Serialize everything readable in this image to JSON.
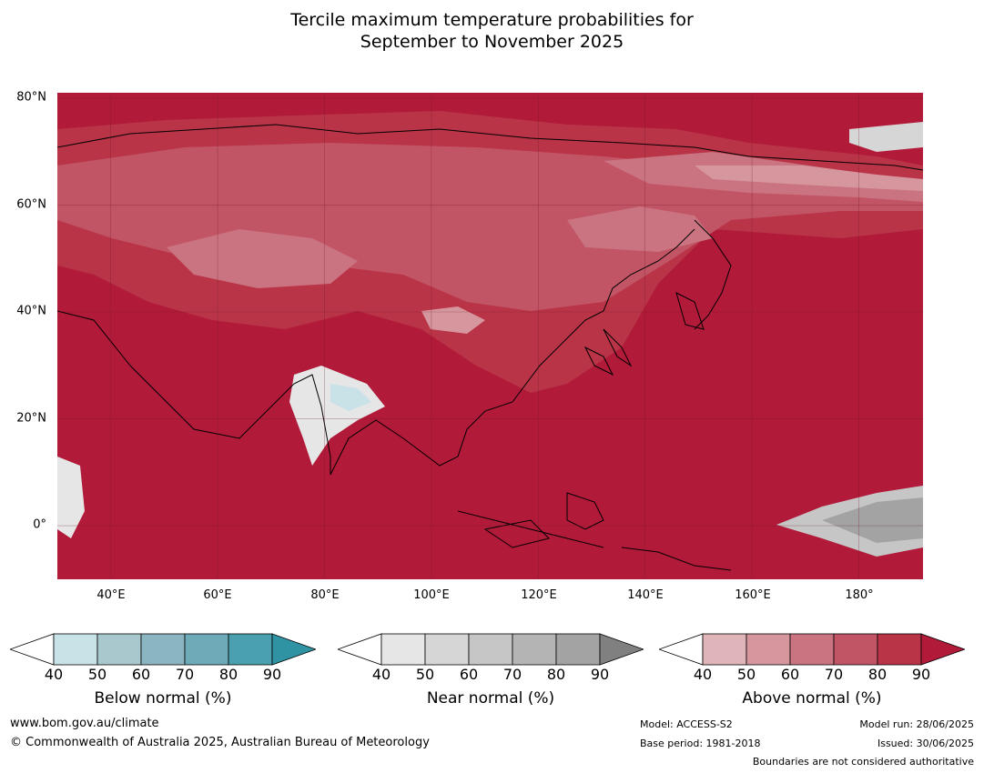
{
  "title_line1": "Tercile maximum temperature probabilities for",
  "title_line2": "September to November 2025",
  "map": {
    "lat_ticks": [
      "80°N",
      "60°N",
      "40°N",
      "20°N",
      "0°"
    ],
    "lon_ticks": [
      "40°E",
      "60°E",
      "80°E",
      "100°E",
      "120°E",
      "140°E",
      "160°E",
      "180°"
    ],
    "lat_range": [
      -10,
      81
    ],
    "lon_range": [
      30,
      192
    ]
  },
  "colorbars": [
    {
      "label": "Below normal (%)",
      "ticks": [
        "40",
        "50",
        "60",
        "70",
        "80",
        "90"
      ],
      "colors": [
        "#c9e2e8",
        "#a8c8cd",
        "#8bb6c1",
        "#6eabb9",
        "#4aa0af",
        "#2f93a3"
      ]
    },
    {
      "label": "Near normal (%)",
      "ticks": [
        "40",
        "50",
        "60",
        "70",
        "80",
        "90"
      ],
      "colors": [
        "#e6e6e6",
        "#d6d6d6",
        "#c6c6c6",
        "#b4b4b4",
        "#a3a3a3",
        "#808080"
      ]
    },
    {
      "label": "Above normal (%)",
      "ticks": [
        "40",
        "50",
        "60",
        "70",
        "80",
        "90"
      ],
      "colors": [
        "#e0b5ba",
        "#d6969e",
        "#ca7381",
        "#c25565",
        "#b93447",
        "#b11a39"
      ]
    }
  ],
  "footer": {
    "website": "www.bom.gov.au/climate",
    "copyright": "© Commonwealth of Australia 2025, Australian Bureau of Meteorology",
    "model": "Model: ACCESS-S2",
    "base_period": "Base period: 1981-2018",
    "model_run": "Model run: 28/06/2025",
    "issued": "Issued: 30/06/2025",
    "disclaimer": "Boundaries are not considered authoritative"
  }
}
